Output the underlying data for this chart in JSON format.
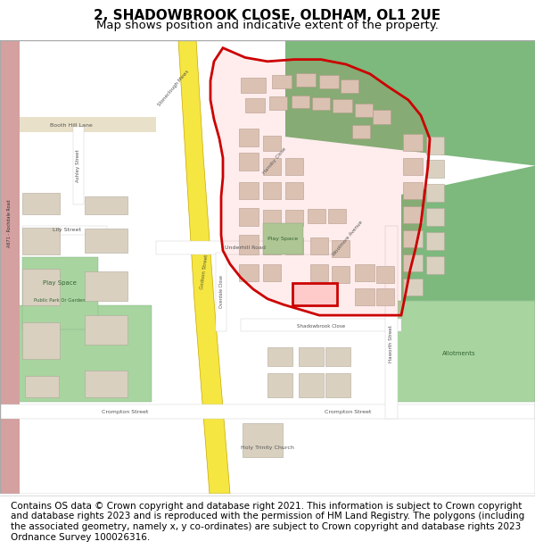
{
  "title": "2, SHADOWBROOK CLOSE, OLDHAM, OL1 2UE",
  "subtitle": "Map shows position and indicative extent of the property.",
  "title_fontsize": 11,
  "subtitle_fontsize": 9.5,
  "footer_text": "Contains OS data © Crown copyright and database right 2021. This information is subject to Crown copyright and database rights 2023 and is reproduced with the permission of HM Land Registry. The polygons (including the associated geometry, namely x, y co-ordinates) are subject to Crown copyright and database rights 2023 Ordnance Survey 100026316.",
  "footer_fontsize": 7.5,
  "map_bg": "#f2ede4",
  "building_color": "#d9d0c0",
  "building_edge": "#b0a898",
  "road_color": "#ffffff",
  "road_yellow": "#f5e642",
  "green_area": "#7db87d",
  "green_light": "#a8d4a0",
  "red_line_color": "#cc0000",
  "fig_width": 6.0,
  "fig_height": 6.25,
  "dpi": 100
}
